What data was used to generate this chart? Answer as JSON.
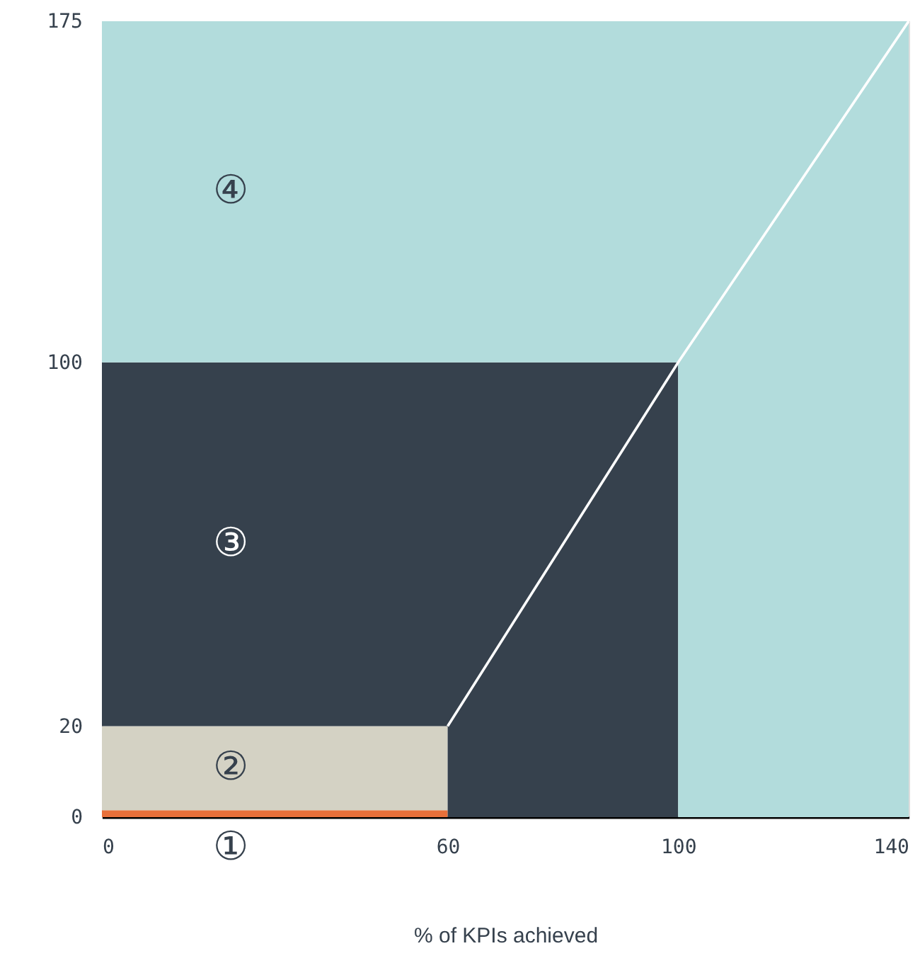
{
  "chart_data": {
    "type": "area",
    "xlabel": "% of KPIs achieved",
    "xlim": [
      0,
      140
    ],
    "xticks": [
      0,
      60,
      100,
      140
    ],
    "ylim": [
      0,
      175
    ],
    "yticks": [
      0,
      20,
      100,
      175
    ],
    "stacked": true,
    "x": [
      0,
      60,
      60,
      100,
      100,
      140
    ],
    "series": [
      {
        "color": "#e8703a",
        "values": [
          1.5,
          1.5,
          0,
          0,
          0,
          0
        ]
      },
      {
        "color": "#d4d2c4",
        "values": [
          18.5,
          18.5,
          0,
          0,
          0,
          0
        ]
      },
      {
        "color": "#36414d",
        "values": [
          80,
          80,
          100,
          100,
          0,
          0
        ]
      },
      {
        "color": "#b2dcdc",
        "values": [
          75,
          75,
          75,
          75,
          175,
          175
        ]
      },
      {
        "type": "line",
        "color": "#ffffff",
        "x": [
          60,
          100,
          140
        ],
        "values": [
          20,
          100,
          175
        ]
      }
    ],
    "annotations": [
      "①",
      "②",
      "③",
      "④"
    ]
  }
}
